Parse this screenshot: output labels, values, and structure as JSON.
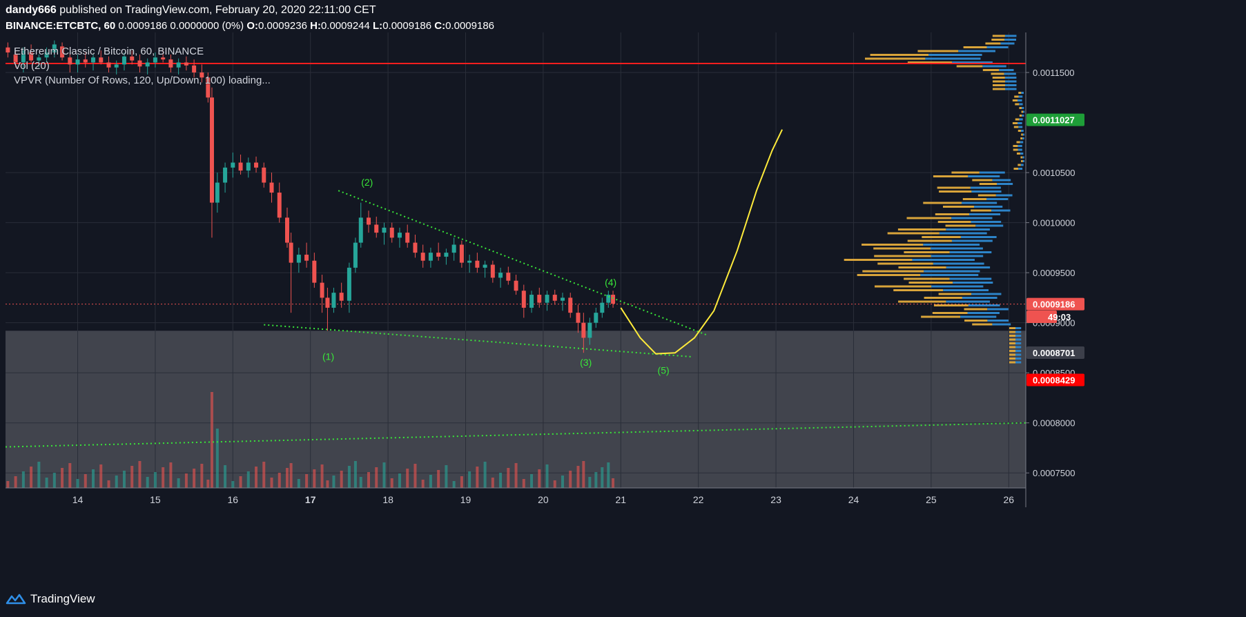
{
  "header": {
    "author": "dandy666",
    "published_text": "published on TradingView.com, February 20, 2020 22:11:00 CET",
    "symbol": "BINANCE:ETCBTC, 60",
    "quote": "0.0009186 0.0000000 (0%)",
    "o_label": "O:",
    "o": "0.0009236",
    "h_label": "H:",
    "h": "0.0009244",
    "l_label": "L:",
    "l": "0.0009186",
    "c_label": "C:",
    "c": "0.0009186"
  },
  "legend": {
    "main": "Ethereum Classic / Bitcoin, 60, BINANCE",
    "vol": "Vol (20)",
    "vpvr": "VPVR (Number Of Rows, 120, Up/Down, 100) loading..."
  },
  "footer": {
    "brand": "TradingView"
  },
  "colors": {
    "background": "#131722",
    "grid": "#2a2e39",
    "up": "#26a69a",
    "down": "#ef5350",
    "trendline": "#39e639",
    "projection": "#ffeb3b",
    "resistance": "#ff1f1f",
    "zone": "#4a4c55",
    "vp_up": "#2d84c9",
    "vp_down": "#d9a43a"
  },
  "chart_data": {
    "type": "candlestick",
    "y_axis": {
      "min": 0.000735,
      "max": 0.00119,
      "ticks": [
        "0.0011500",
        "0.0010500",
        "0.0010000",
        "0.0009500",
        "0.0009000",
        "0.0008500",
        "0.0008000",
        "0.0007500"
      ]
    },
    "x_axis": {
      "ticks": [
        "14",
        "15",
        "16",
        "17",
        "18",
        "19",
        "20",
        "21",
        "22",
        "23",
        "24",
        "25",
        "26"
      ],
      "start": 13.07,
      "end": 26.22
    },
    "bold_ticks": [
      "17"
    ],
    "price_badges": [
      {
        "value": "0.0011027",
        "y": 0.0011027,
        "color": "#1e9e38"
      },
      {
        "value": "0.0009186",
        "y": 0.0009186,
        "color": "#ef5350"
      },
      {
        "value": "49:03",
        "y": 0.000906,
        "color": "#ef5350"
      },
      {
        "value": "0.0008701",
        "y": 0.0008701,
        "color": "#3c3f4a"
      },
      {
        "value": "0.0008429",
        "y": 0.0008429,
        "color": "#ff0000"
      }
    ],
    "wave_labels": [
      {
        "label": "(1)",
        "x": 17.23,
        "y": 0.000863
      },
      {
        "label": "(2)",
        "x": 17.73,
        "y": 0.001037
      },
      {
        "label": "(3)",
        "x": 20.55,
        "y": 0.000857
      },
      {
        "label": "(4)",
        "x": 20.87,
        "y": 0.000937
      },
      {
        "label": "(5)",
        "x": 21.55,
        "y": 0.000849
      }
    ],
    "resistance_level": 0.001159,
    "current_price": 0.0009186,
    "zone": {
      "top": 0.000892,
      "bottom": 0.000735
    },
    "trendlines": [
      {
        "from": [
          16.4,
          0.000898
        ],
        "to": [
          21.92,
          0.000866
        ]
      },
      {
        "from": [
          17.36,
          0.001032
        ],
        "to": [
          22.1,
          0.000888
        ]
      },
      {
        "from": [
          13.07,
          0.000776
        ],
        "to": [
          26.22,
          0.0008
        ]
      }
    ],
    "projection": [
      [
        21.0,
        0.000915
      ],
      [
        21.25,
        0.000885
      ],
      [
        21.45,
        0.000869
      ],
      [
        21.7,
        0.00087
      ],
      [
        21.95,
        0.000885
      ],
      [
        22.2,
        0.000912
      ],
      [
        22.5,
        0.000972
      ],
      [
        22.75,
        0.001032
      ],
      [
        22.95,
        0.001072
      ],
      [
        23.08,
        0.001093
      ]
    ],
    "candles": [
      [
        13.1,
        0.001175,
        0.00118,
        0.001165,
        0.00117
      ],
      [
        13.2,
        0.001168,
        0.001172,
        0.001155,
        0.00116
      ],
      [
        13.3,
        0.00116,
        0.001175,
        0.00115,
        0.001172
      ],
      [
        13.4,
        0.00117,
        0.001178,
        0.00116,
        0.001162
      ],
      [
        13.5,
        0.001162,
        0.001168,
        0.001155,
        0.001165
      ],
      [
        13.6,
        0.001165,
        0.001175,
        0.00116,
        0.00117
      ],
      [
        13.7,
        0.00117,
        0.001182,
        0.001165,
        0.001178
      ],
      [
        13.8,
        0.001176,
        0.00118,
        0.001162,
        0.001165
      ],
      [
        13.9,
        0.001165,
        0.00117,
        0.00115,
        0.001158
      ],
      [
        14.0,
        0.001158,
        0.001168,
        0.00115,
        0.001163
      ],
      [
        14.1,
        0.001163,
        0.00117,
        0.001155,
        0.00116
      ],
      [
        14.2,
        0.00116,
        0.001168,
        0.001152,
        0.001165
      ],
      [
        14.3,
        0.001165,
        0.001172,
        0.001158,
        0.00116
      ],
      [
        14.4,
        0.00116,
        0.001166,
        0.00115,
        0.001155
      ],
      [
        14.5,
        0.001155,
        0.001162,
        0.001148,
        0.001158
      ],
      [
        14.6,
        0.001158,
        0.00117,
        0.001152,
        0.001166
      ],
      [
        14.7,
        0.001166,
        0.001172,
        0.001158,
        0.001162
      ],
      [
        14.8,
        0.001162,
        0.001168,
        0.00115,
        0.001156
      ],
      [
        14.9,
        0.001156,
        0.001164,
        0.001148,
        0.00116
      ],
      [
        15.0,
        0.00116,
        0.00117,
        0.001155,
        0.001165
      ],
      [
        15.1,
        0.001165,
        0.001172,
        0.00116,
        0.001163
      ],
      [
        15.2,
        0.001163,
        0.001168,
        0.00115,
        0.001155
      ],
      [
        15.3,
        0.001155,
        0.001164,
        0.001148,
        0.00116
      ],
      [
        15.4,
        0.00116,
        0.001166,
        0.001152,
        0.001157
      ],
      [
        15.5,
        0.001157,
        0.001163,
        0.001145,
        0.00115
      ],
      [
        15.6,
        0.00115,
        0.001158,
        0.00114,
        0.001145
      ],
      [
        15.68,
        0.001145,
        0.00115,
        0.00112,
        0.001125
      ],
      [
        15.73,
        0.001125,
        0.001135,
        0.000985,
        0.00102
      ],
      [
        15.8,
        0.00102,
        0.00105,
        0.00101,
        0.00104
      ],
      [
        15.9,
        0.00104,
        0.00106,
        0.00103,
        0.001055
      ],
      [
        16.0,
        0.001055,
        0.00107,
        0.001045,
        0.00106
      ],
      [
        16.1,
        0.00106,
        0.001068,
        0.001048,
        0.001052
      ],
      [
        16.2,
        0.001052,
        0.001065,
        0.001045,
        0.00106
      ],
      [
        16.3,
        0.00106,
        0.001066,
        0.00105,
        0.001055
      ],
      [
        16.4,
        0.001055,
        0.00106,
        0.001035,
        0.00104
      ],
      [
        16.5,
        0.00104,
        0.00105,
        0.00102,
        0.00103
      ],
      [
        16.6,
        0.00103,
        0.00104,
        0.001,
        0.001005
      ],
      [
        16.7,
        0.001005,
        0.001015,
        0.000975,
        0.00098
      ],
      [
        16.75,
        0.00098,
        0.00099,
        0.00091,
        0.00096
      ],
      [
        16.85,
        0.00096,
        0.000975,
        0.00095,
        0.000968
      ],
      [
        16.95,
        0.000968,
        0.00098,
        0.000955,
        0.000962
      ],
      [
        17.05,
        0.000962,
        0.00097,
        0.000935,
        0.00094
      ],
      [
        17.15,
        0.00094,
        0.000948,
        0.00091,
        0.000925
      ],
      [
        17.22,
        0.000925,
        0.000935,
        0.000892,
        0.000915
      ],
      [
        17.3,
        0.000915,
        0.000935,
        0.00091,
        0.00093
      ],
      [
        17.4,
        0.00093,
        0.00094,
        0.000915,
        0.000922
      ],
      [
        17.5,
        0.000922,
        0.00096,
        0.00091,
        0.000955
      ],
      [
        17.58,
        0.000955,
        0.000985,
        0.00095,
        0.00098
      ],
      [
        17.65,
        0.00098,
        0.00102,
        0.000975,
        0.001005
      ],
      [
        17.75,
        0.001005,
        0.001012,
        0.00099,
        0.000998
      ],
      [
        17.85,
        0.000998,
        0.001006,
        0.000985,
        0.00099
      ],
      [
        17.95,
        0.00099,
        0.001,
        0.000978,
        0.000995
      ],
      [
        18.05,
        0.000995,
        0.001,
        0.00098,
        0.000985
      ],
      [
        18.15,
        0.000985,
        0.000995,
        0.000975,
        0.00099
      ],
      [
        18.25,
        0.00099,
        0.000998,
        0.000975,
        0.00098
      ],
      [
        18.35,
        0.00098,
        0.000988,
        0.000965,
        0.00097
      ],
      [
        18.45,
        0.00097,
        0.000978,
        0.000955,
        0.000962
      ],
      [
        18.55,
        0.000962,
        0.000975,
        0.000955,
        0.00097
      ],
      [
        18.65,
        0.00097,
        0.00098,
        0.000962,
        0.000966
      ],
      [
        18.75,
        0.000966,
        0.000974,
        0.000958,
        0.00097
      ],
      [
        18.85,
        0.00097,
        0.000985,
        0.000962,
        0.000978
      ],
      [
        18.95,
        0.000978,
        0.000982,
        0.000955,
        0.00096
      ],
      [
        19.05,
        0.00096,
        0.000968,
        0.00095,
        0.000962
      ],
      [
        19.15,
        0.000962,
        0.00097,
        0.00095,
        0.000955
      ],
      [
        19.25,
        0.000955,
        0.000962,
        0.000945,
        0.000958
      ],
      [
        19.35,
        0.000958,
        0.000962,
        0.00094,
        0.000945
      ],
      [
        19.45,
        0.000945,
        0.000955,
        0.000935,
        0.00095
      ],
      [
        19.55,
        0.00095,
        0.000956,
        0.000938,
        0.000942
      ],
      [
        19.65,
        0.000942,
        0.000948,
        0.000928,
        0.000932
      ],
      [
        19.75,
        0.000932,
        0.000938,
        0.000905,
        0.000915
      ],
      [
        19.85,
        0.000915,
        0.000932,
        0.00091,
        0.000928
      ],
      [
        19.95,
        0.000928,
        0.000935,
        0.000915,
        0.00092
      ],
      [
        20.05,
        0.00092,
        0.000932,
        0.000912,
        0.000928
      ],
      [
        20.15,
        0.000928,
        0.000933,
        0.000918,
        0.000922
      ],
      [
        20.25,
        0.000922,
        0.00093,
        0.000912,
        0.000925
      ],
      [
        20.35,
        0.000925,
        0.00093,
        0.000905,
        0.00091
      ],
      [
        20.45,
        0.00091,
        0.000918,
        0.00089,
        0.0009
      ],
      [
        20.52,
        0.0009,
        0.00091,
        0.00087,
        0.000885
      ],
      [
        20.6,
        0.000885,
        0.000905,
        0.000878,
        0.0009
      ],
      [
        20.68,
        0.0009,
        0.000915,
        0.000895,
        0.00091
      ],
      [
        20.76,
        0.00091,
        0.000925,
        0.000905,
        0.00092
      ],
      [
        20.84,
        0.00092,
        0.000932,
        0.000915,
        0.000928
      ],
      [
        20.9,
        0.000928,
        0.000932,
        0.000915,
        0.000919
      ]
    ]
  }
}
